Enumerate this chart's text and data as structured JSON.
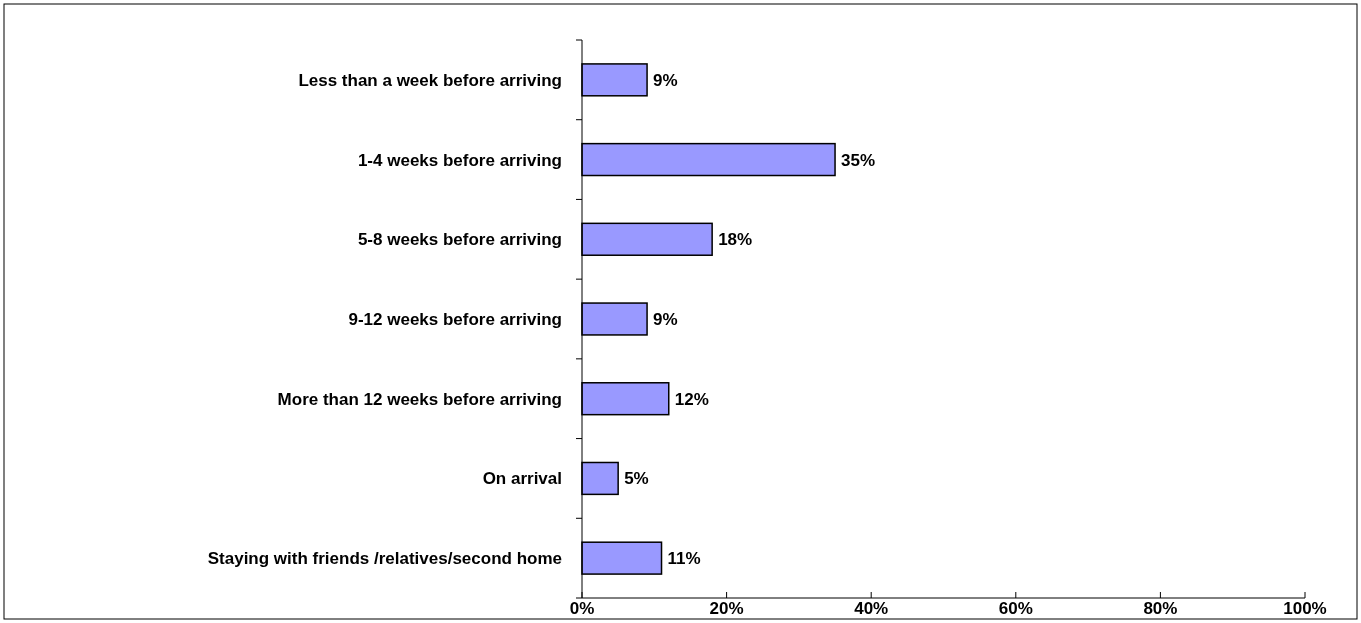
{
  "chart_data": {
    "type": "bar",
    "orientation": "horizontal",
    "categories": [
      "Less than a week before arriving",
      "1-4 weeks before arriving",
      "5-8 weeks before arriving",
      "9-12 weeks before arriving",
      "More than 12 weeks before arriving",
      "On arrival",
      "Staying with friends /relatives/second home"
    ],
    "values": [
      9,
      35,
      18,
      9,
      12,
      5,
      11
    ],
    "value_labels": [
      "9%",
      "35%",
      "18%",
      "9%",
      "12%",
      "5%",
      "11%"
    ],
    "color": "#9999ff",
    "xlim": [
      0,
      100
    ],
    "xticks": [
      {
        "value": 0,
        "label": "0%"
      },
      {
        "value": 20,
        "label": "20%"
      },
      {
        "value": 40,
        "label": "40%"
      },
      {
        "value": 60,
        "label": "60%"
      },
      {
        "value": 80,
        "label": "80%"
      },
      {
        "value": 100,
        "label": "100%"
      }
    ],
    "grid": false
  }
}
